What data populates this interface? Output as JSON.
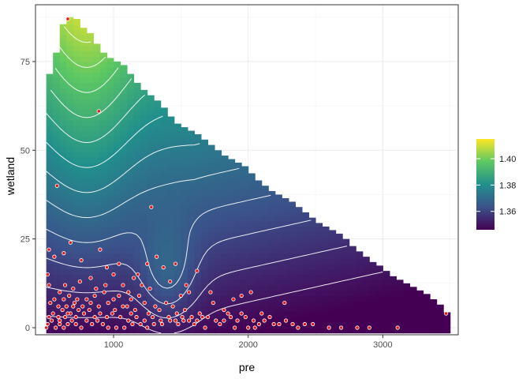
{
  "chart_data": {
    "type": "heatmap",
    "title": "",
    "xlabel": "pre",
    "ylabel": "wetland",
    "xlim": [
      420,
      3560
    ],
    "ylim": [
      -2,
      91
    ],
    "x_ticks": [
      1000,
      2000,
      3000
    ],
    "x_tick_labels": [
      "1000",
      "2000",
      "3000"
    ],
    "y_ticks": [
      0,
      25,
      50,
      75
    ],
    "y_tick_labels": [
      "0",
      "25",
      "50",
      "75"
    ],
    "grid": true,
    "legend": {
      "placement": "right",
      "type": "colorbar",
      "min": 1.346,
      "max": 1.415,
      "ticks": [
        1.36,
        1.38,
        1.4
      ],
      "tick_labels": [
        "1.36",
        "1.38",
        "1.40"
      ],
      "colors": [
        "#440154",
        "#3b528b",
        "#21908c",
        "#5dc863",
        "#fde725"
      ]
    },
    "surface": {
      "x_start": 500,
      "x_end": 3200,
      "x_step": 50,
      "y_bottom": -1.5,
      "y_top_profile": [
        [
          500,
          64
        ],
        [
          530,
          73
        ],
        [
          560,
          73
        ],
        [
          600,
          85
        ],
        [
          650,
          86
        ],
        [
          700,
          89
        ],
        [
          750,
          85
        ],
        [
          800,
          84
        ],
        [
          850,
          82
        ],
        [
          900,
          78
        ],
        [
          950,
          77
        ],
        [
          1000,
          75
        ],
        [
          1050,
          75
        ],
        [
          1100,
          73
        ],
        [
          1150,
          70
        ],
        [
          1200,
          68
        ],
        [
          1250,
          66
        ],
        [
          1300,
          65
        ],
        [
          1350,
          63
        ],
        [
          1400,
          61
        ],
        [
          1450,
          58
        ],
        [
          1500,
          57
        ],
        [
          1550,
          56
        ],
        [
          1600,
          55
        ],
        [
          1650,
          54
        ],
        [
          1700,
          52
        ],
        [
          1750,
          51
        ],
        [
          1800,
          49
        ],
        [
          1850,
          48
        ],
        [
          1900,
          47
        ],
        [
          1950,
          46
        ],
        [
          2000,
          45
        ],
        [
          2050,
          42
        ],
        [
          2100,
          41
        ],
        [
          2150,
          39
        ],
        [
          2200,
          38
        ],
        [
          2250,
          37
        ],
        [
          2300,
          36
        ],
        [
          2350,
          35
        ],
        [
          2400,
          33
        ],
        [
          2450,
          32
        ],
        [
          2500,
          30
        ],
        [
          2550,
          29
        ],
        [
          2600,
          28
        ],
        [
          2650,
          27
        ],
        [
          2700,
          26
        ],
        [
          2750,
          24
        ],
        [
          2800,
          22
        ],
        [
          2850,
          21
        ],
        [
          2900,
          19
        ],
        [
          2950,
          18
        ],
        [
          3000,
          17
        ],
        [
          3050,
          15
        ],
        [
          3100,
          14
        ],
        [
          3150,
          13
        ],
        [
          3200,
          12
        ],
        [
          3250,
          11
        ],
        [
          3300,
          10
        ],
        [
          3350,
          9
        ],
        [
          3400,
          7
        ],
        [
          3450,
          6
        ],
        [
          3480,
          4
        ]
      ],
      "contour_levels": [
        1.35,
        1.355,
        1.36,
        1.365,
        1.37,
        1.375,
        1.38,
        1.385,
        1.39,
        1.395,
        1.4,
        1.405,
        1.41
      ],
      "contour_color": "#ffffff"
    },
    "points": [
      [
        660,
        87
      ],
      [
        890,
        61
      ],
      [
        580,
        40
      ],
      [
        680,
        24
      ],
      [
        1280,
        34
      ],
      [
        900,
        22
      ],
      [
        520,
        22
      ],
      [
        560,
        20
      ],
      [
        630,
        21
      ],
      [
        760,
        19
      ],
      [
        1320,
        20
      ],
      [
        1460,
        18
      ],
      [
        1370,
        17
      ],
      [
        1150,
        14
      ],
      [
        1000,
        15
      ],
      [
        1070,
        12
      ],
      [
        1210,
        12
      ],
      [
        1270,
        11
      ],
      [
        1420,
        13
      ],
      [
        1540,
        12
      ],
      [
        1620,
        16
      ],
      [
        1500,
        9
      ],
      [
        1560,
        10
      ],
      [
        1720,
        10
      ],
      [
        1740,
        7
      ],
      [
        1890,
        8
      ],
      [
        1950,
        9
      ],
      [
        2020,
        10
      ],
      [
        2270,
        7
      ],
      [
        3470,
        4
      ],
      [
        1850,
        4
      ],
      [
        1950,
        4
      ],
      [
        2100,
        4
      ],
      [
        2160,
        3
      ],
      [
        1820,
        5
      ],
      [
        2080,
        1
      ],
      [
        2230,
        1
      ],
      [
        2330,
        1
      ],
      [
        2370,
        0
      ],
      [
        2420,
        1
      ],
      [
        2480,
        1
      ],
      [
        2600,
        0
      ],
      [
        2690,
        0
      ],
      [
        2810,
        0
      ],
      [
        3110,
        0
      ],
      [
        2900,
        0
      ],
      [
        2050,
        0
      ],
      [
        2000,
        0
      ],
      [
        1900,
        0
      ],
      [
        1790,
        1
      ],
      [
        1680,
        0
      ],
      [
        1600,
        1
      ],
      [
        1520,
        2
      ],
      [
        1480,
        1
      ],
      [
        1420,
        2
      ],
      [
        1360,
        1
      ],
      [
        1300,
        1
      ],
      [
        1250,
        0
      ],
      [
        1200,
        1
      ],
      [
        1140,
        1
      ],
      [
        1080,
        0
      ],
      [
        1020,
        0
      ],
      [
        960,
        0
      ],
      [
        920,
        1
      ],
      [
        880,
        2
      ],
      [
        840,
        1
      ],
      [
        800,
        2
      ],
      [
        760,
        0
      ],
      [
        720,
        1
      ],
      [
        690,
        2
      ],
      [
        660,
        1
      ],
      [
        630,
        0
      ],
      [
        600,
        1
      ],
      [
        570,
        0
      ],
      [
        540,
        2
      ],
      [
        510,
        1
      ],
      [
        500,
        0
      ],
      [
        520,
        3
      ],
      [
        550,
        4
      ],
      [
        590,
        3
      ],
      [
        620,
        5
      ],
      [
        650,
        6
      ],
      [
        680,
        4
      ],
      [
        710,
        7
      ],
      [
        740,
        5
      ],
      [
        770,
        6
      ],
      [
        800,
        8
      ],
      [
        830,
        7
      ],
      [
        860,
        9
      ],
      [
        890,
        6
      ],
      [
        930,
        10
      ],
      [
        960,
        7
      ],
      [
        1000,
        8
      ],
      [
        1040,
        9
      ],
      [
        1100,
        6
      ],
      [
        1130,
        8
      ],
      [
        1160,
        5
      ],
      [
        1190,
        9
      ],
      [
        1230,
        7
      ],
      [
        1260,
        4
      ],
      [
        1310,
        6
      ],
      [
        1340,
        5
      ],
      [
        1390,
        7
      ],
      [
        1440,
        6
      ],
      [
        1470,
        4
      ],
      [
        1530,
        5
      ],
      [
        1580,
        3
      ],
      [
        1640,
        4
      ],
      [
        1700,
        3
      ],
      [
        1760,
        2
      ],
      [
        1820,
        2
      ],
      [
        1870,
        3
      ],
      [
        1920,
        2
      ],
      [
        1980,
        3
      ],
      [
        2040,
        2
      ],
      [
        2120,
        2
      ],
      [
        2190,
        1
      ],
      [
        2280,
        2
      ],
      [
        600,
        10
      ],
      [
        640,
        12
      ],
      [
        700,
        11
      ],
      [
        750,
        13
      ],
      [
        830,
        14
      ],
      [
        870,
        11
      ],
      [
        940,
        12
      ],
      [
        520,
        12
      ],
      [
        560,
        8
      ],
      [
        590,
        6
      ],
      [
        630,
        8
      ],
      [
        670,
        9
      ],
      [
        720,
        3
      ],
      [
        780,
        4
      ],
      [
        820,
        5
      ],
      [
        860,
        3
      ],
      [
        900,
        4
      ],
      [
        950,
        3
      ],
      [
        990,
        4
      ],
      [
        1050,
        3
      ],
      [
        1110,
        2
      ],
      [
        1170,
        3
      ],
      [
        1230,
        2
      ],
      [
        1290,
        3
      ],
      [
        1350,
        2
      ],
      [
        1410,
        3
      ],
      [
        1460,
        2
      ],
      [
        1510,
        3
      ],
      [
        1560,
        2
      ],
      [
        1620,
        2
      ],
      [
        1660,
        3
      ],
      [
        600,
        2
      ],
      [
        640,
        3
      ],
      [
        660,
        4
      ],
      [
        700,
        6
      ],
      [
        730,
        8
      ],
      [
        510,
        15
      ],
      [
        530,
        7
      ],
      [
        950,
        17
      ],
      [
        1110,
        10
      ],
      [
        1040,
        18
      ],
      [
        1180,
        15
      ],
      [
        1250,
        18
      ],
      [
        1010,
        5
      ],
      [
        1070,
        6
      ],
      [
        1130,
        4
      ]
    ]
  }
}
